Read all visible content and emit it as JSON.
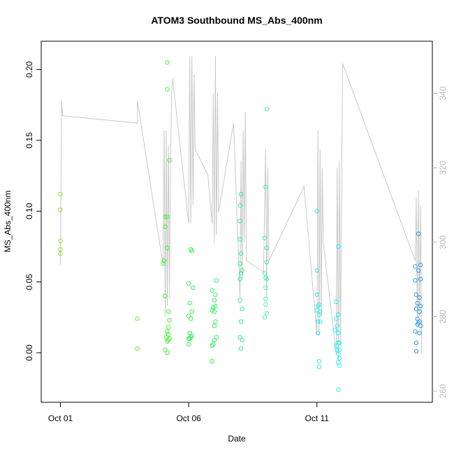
{
  "chart_data": {
    "type": "scatter",
    "title": "ATOM3 Southbound MS_Abs_400nm",
    "xlabel": "Date",
    "ylabel": "MS_Abs_400nm",
    "xlim": [
      "2016-09-30 06:00",
      "2016-10-15 12:00"
    ],
    "ylim": [
      -0.035,
      0.22
    ],
    "x_ticks": [
      {
        "date": "2016-10-01 00:00",
        "label": "Oct 01"
      },
      {
        "date": "2016-10-06 00:00",
        "label": "Oct 06"
      },
      {
        "date": "2016-10-11 00:00",
        "label": "Oct 11"
      }
    ],
    "y_ticks": [
      {
        "value": 0.0,
        "label": "0.00"
      },
      {
        "value": 0.05,
        "label": "0.05"
      },
      {
        "value": 0.1,
        "label": "0.10"
      },
      {
        "value": 0.15,
        "label": "0.15"
      },
      {
        "value": 0.2,
        "label": "0.20"
      }
    ],
    "y2lim": [
      257,
      354
    ],
    "y2_ticks": [
      {
        "value": 260,
        "label": "260"
      },
      {
        "value": 280,
        "label": "280"
      },
      {
        "value": 300,
        "label": "300"
      },
      {
        "value": 320,
        "label": "320"
      },
      {
        "value": 340,
        "label": "340"
      }
    ],
    "points": [
      {
        "x": "2016-10-01 00:00",
        "y": 0.112,
        "color": "#99e033"
      },
      {
        "x": "2016-10-01 00:00",
        "y": 0.101,
        "color": "#99e033"
      },
      {
        "x": "2016-10-01 00:00",
        "y": 0.079,
        "color": "#99e033"
      },
      {
        "x": "2016-10-01 00:00",
        "y": 0.073,
        "color": "#99e033"
      },
      {
        "x": "2016-10-01 00:00",
        "y": 0.07,
        "color": "#99e033"
      },
      {
        "x": "2016-10-04 00:00",
        "y": 0.024,
        "color": "#66ee22"
      },
      {
        "x": "2016-10-04 00:00",
        "y": 0.003,
        "color": "#66ee22"
      },
      {
        "x": "2016-10-05 04:00",
        "y": 0.205,
        "color": "#44f033"
      },
      {
        "x": "2016-10-05 04:00",
        "y": 0.186,
        "color": "#44f033"
      },
      {
        "x": "2016-10-05 06:00",
        "y": 0.136,
        "color": "#44f033"
      },
      {
        "x": "2016-10-05 02:00",
        "y": 0.096,
        "color": "#44f033"
      },
      {
        "x": "2016-10-05 04:00",
        "y": 0.096,
        "color": "#44f033"
      },
      {
        "x": "2016-10-05 02:00",
        "y": 0.089,
        "color": "#44f033"
      },
      {
        "x": "2016-10-05 04:00",
        "y": 0.074,
        "color": "#44f033"
      },
      {
        "x": "2016-10-05 01:00",
        "y": 0.065,
        "color": "#44f033"
      },
      {
        "x": "2016-10-05 00:00",
        "y": 0.063,
        "color": "#44f033"
      },
      {
        "x": "2016-10-05 02:00",
        "y": 0.04,
        "color": "#44f033"
      },
      {
        "x": "2016-10-05 05:00",
        "y": 0.029,
        "color": "#44f033"
      },
      {
        "x": "2016-10-05 06:00",
        "y": 0.023,
        "color": "#44f033"
      },
      {
        "x": "2016-10-05 05:00",
        "y": 0.018,
        "color": "#44f033"
      },
      {
        "x": "2016-10-05 04:00",
        "y": 0.015,
        "color": "#44f033"
      },
      {
        "x": "2016-10-05 05:00",
        "y": 0.013,
        "color": "#44f033"
      },
      {
        "x": "2016-10-05 03:00",
        "y": 0.011,
        "color": "#44f033"
      },
      {
        "x": "2016-10-05 06:00",
        "y": 0.01,
        "color": "#44f033"
      },
      {
        "x": "2016-10-05 05:00",
        "y": 0.009,
        "color": "#44f033"
      },
      {
        "x": "2016-10-05 04:00",
        "y": 0.008,
        "color": "#44f033"
      },
      {
        "x": "2016-10-05 02:00",
        "y": 0.002,
        "color": "#44f033"
      },
      {
        "x": "2016-10-05 04:00",
        "y": 0.0,
        "color": "#44f033"
      },
      {
        "x": "2016-10-06 02:00",
        "y": 0.073,
        "color": "#33ee55"
      },
      {
        "x": "2016-10-06 03:00",
        "y": 0.072,
        "color": "#33ee55"
      },
      {
        "x": "2016-10-06 00:00",
        "y": 0.049,
        "color": "#33ee55"
      },
      {
        "x": "2016-10-06 04:00",
        "y": 0.046,
        "color": "#33ee55"
      },
      {
        "x": "2016-10-06 01:00",
        "y": 0.035,
        "color": "#33ee55"
      },
      {
        "x": "2016-10-06 03:00",
        "y": 0.029,
        "color": "#33ee55"
      },
      {
        "x": "2016-10-06 00:00",
        "y": 0.026,
        "color": "#33ee55"
      },
      {
        "x": "2016-10-06 02:00",
        "y": 0.024,
        "color": "#33ee55"
      },
      {
        "x": "2016-10-06 01:00",
        "y": 0.014,
        "color": "#33ee55"
      },
      {
        "x": "2016-10-06 03:00",
        "y": 0.012,
        "color": "#33ee55"
      },
      {
        "x": "2016-10-06 02:00",
        "y": 0.011,
        "color": "#33ee55"
      },
      {
        "x": "2016-10-06 00:00",
        "y": 0.01,
        "color": "#33ee55"
      },
      {
        "x": "2016-10-06 01:00",
        "y": 0.01,
        "color": "#33ee55"
      },
      {
        "x": "2016-10-06 00:00",
        "y": 0.006,
        "color": "#33ee55"
      },
      {
        "x": "2016-10-06 22:00",
        "y": 0.044,
        "color": "#33ee66"
      },
      {
        "x": "2016-10-07 02:00",
        "y": 0.051,
        "color": "#33ee66"
      },
      {
        "x": "2016-10-07 01:00",
        "y": 0.041,
        "color": "#33ee66"
      },
      {
        "x": "2016-10-07 00:00",
        "y": 0.037,
        "color": "#33ee66"
      },
      {
        "x": "2016-10-07 01:00",
        "y": 0.033,
        "color": "#33ee66"
      },
      {
        "x": "2016-10-06 23:00",
        "y": 0.032,
        "color": "#33ee66"
      },
      {
        "x": "2016-10-07 00:00",
        "y": 0.029,
        "color": "#33ee66"
      },
      {
        "x": "2016-10-06 22:00",
        "y": 0.03,
        "color": "#33ee66"
      },
      {
        "x": "2016-10-07 01:00",
        "y": 0.022,
        "color": "#33ee66"
      },
      {
        "x": "2016-10-07 00:00",
        "y": 0.019,
        "color": "#33ee66"
      },
      {
        "x": "2016-10-07 02:00",
        "y": 0.011,
        "color": "#33ee66"
      },
      {
        "x": "2016-10-07 00:00",
        "y": 0.009,
        "color": "#33ee66"
      },
      {
        "x": "2016-10-06 23:00",
        "y": 0.006,
        "color": "#33ee66"
      },
      {
        "x": "2016-10-06 22:00",
        "y": 0.005,
        "color": "#33ee66"
      },
      {
        "x": "2016-10-06 22:00",
        "y": -0.006,
        "color": "#33ee66"
      },
      {
        "x": "2016-10-08 01:00",
        "y": 0.112,
        "color": "#33ee88"
      },
      {
        "x": "2016-10-08 00:00",
        "y": 0.104,
        "color": "#33ee88"
      },
      {
        "x": "2016-10-08 00:00",
        "y": 0.093,
        "color": "#33ee88"
      },
      {
        "x": "2016-10-08 00:00",
        "y": 0.08,
        "color": "#33ee88"
      },
      {
        "x": "2016-10-08 01:00",
        "y": 0.07,
        "color": "#33ee88"
      },
      {
        "x": "2016-10-08 00:00",
        "y": 0.063,
        "color": "#33ee88"
      },
      {
        "x": "2016-10-08 02:00",
        "y": 0.058,
        "color": "#33ee88"
      },
      {
        "x": "2016-10-08 01:00",
        "y": 0.056,
        "color": "#33ee88"
      },
      {
        "x": "2016-10-08 00:00",
        "y": 0.052,
        "color": "#33ee88"
      },
      {
        "x": "2016-10-08 02:00",
        "y": 0.031,
        "color": "#33ee88"
      },
      {
        "x": "2016-10-08 01:00",
        "y": 0.022,
        "color": "#33ee88"
      },
      {
        "x": "2016-10-08 00:00",
        "y": 0.011,
        "color": "#33ee88"
      },
      {
        "x": "2016-10-08 02:00",
        "y": 0.009,
        "color": "#33ee88"
      },
      {
        "x": "2016-10-08 01:00",
        "y": 0.003,
        "color": "#33ee88"
      },
      {
        "x": "2016-10-08 00:00",
        "y": 0.037,
        "color": "#33ee88"
      },
      {
        "x": "2016-10-09 01:00",
        "y": 0.172,
        "color": "#44eeaa"
      },
      {
        "x": "2016-10-09 00:00",
        "y": 0.117,
        "color": "#44eeaa"
      },
      {
        "x": "2016-10-08 23:00",
        "y": 0.081,
        "color": "#44eeaa"
      },
      {
        "x": "2016-10-09 01:00",
        "y": 0.074,
        "color": "#44eeaa"
      },
      {
        "x": "2016-10-09 01:00",
        "y": 0.064,
        "color": "#44eeaa"
      },
      {
        "x": "2016-10-08 23:00",
        "y": 0.056,
        "color": "#44eeaa"
      },
      {
        "x": "2016-10-09 00:00",
        "y": 0.053,
        "color": "#44eeaa"
      },
      {
        "x": "2016-10-09 01:00",
        "y": 0.052,
        "color": "#44eeaa"
      },
      {
        "x": "2016-10-09 00:00",
        "y": 0.046,
        "color": "#44eeaa"
      },
      {
        "x": "2016-10-09 00:00",
        "y": 0.038,
        "color": "#44eeaa"
      },
      {
        "x": "2016-10-09 00:00",
        "y": 0.034,
        "color": "#44eeaa"
      },
      {
        "x": "2016-10-09 01:00",
        "y": 0.028,
        "color": "#44eeaa"
      },
      {
        "x": "2016-10-08 23:00",
        "y": 0.025,
        "color": "#44eeaa"
      },
      {
        "x": "2016-10-11 00:00",
        "y": 0.1,
        "color": "#33eedd"
      },
      {
        "x": "2016-10-11 00:00",
        "y": 0.058,
        "color": "#33eedd"
      },
      {
        "x": "2016-10-11 00:00",
        "y": 0.041,
        "color": "#33eedd"
      },
      {
        "x": "2016-10-11 02:00",
        "y": 0.034,
        "color": "#33eedd"
      },
      {
        "x": "2016-10-11 01:00",
        "y": 0.033,
        "color": "#33eedd"
      },
      {
        "x": "2016-10-11 03:00",
        "y": 0.029,
        "color": "#33eedd"
      },
      {
        "x": "2016-10-11 00:00",
        "y": 0.03,
        "color": "#33eedd"
      },
      {
        "x": "2016-10-11 02:00",
        "y": 0.027,
        "color": "#33eedd"
      },
      {
        "x": "2016-10-11 01:00",
        "y": 0.022,
        "color": "#33eedd"
      },
      {
        "x": "2016-10-11 03:00",
        "y": 0.022,
        "color": "#33eedd"
      },
      {
        "x": "2016-10-11 01:00",
        "y": 0.014,
        "color": "#33eedd"
      },
      {
        "x": "2016-10-11 02:00",
        "y": -0.006,
        "color": "#33eedd"
      },
      {
        "x": "2016-10-11 02:00",
        "y": -0.01,
        "color": "#33eedd"
      },
      {
        "x": "2016-10-11 20:00",
        "y": 0.075,
        "color": "#33eeee"
      },
      {
        "x": "2016-10-11 18:00",
        "y": 0.036,
        "color": "#33eeee"
      },
      {
        "x": "2016-10-11 20:00",
        "y": 0.027,
        "color": "#33eeee"
      },
      {
        "x": "2016-10-11 18:00",
        "y": 0.024,
        "color": "#33eeee"
      },
      {
        "x": "2016-10-11 19:00",
        "y": 0.019,
        "color": "#33eeee"
      },
      {
        "x": "2016-10-11 17:00",
        "y": 0.016,
        "color": "#33eeee"
      },
      {
        "x": "2016-10-11 20:00",
        "y": 0.014,
        "color": "#33eeee"
      },
      {
        "x": "2016-10-11 20:00",
        "y": 0.007,
        "color": "#33eeee"
      },
      {
        "x": "2016-10-11 21:00",
        "y": 0.007,
        "color": "#33eeee"
      },
      {
        "x": "2016-10-11 18:00",
        "y": 0.005,
        "color": "#33eeee"
      },
      {
        "x": "2016-10-11 19:00",
        "y": 0.002,
        "color": "#33eeee"
      },
      {
        "x": "2016-10-11 21:00",
        "y": 0.002,
        "color": "#33eeee"
      },
      {
        "x": "2016-10-11 20:00",
        "y": -0.001,
        "color": "#33eeee"
      },
      {
        "x": "2016-10-11 21:00",
        "y": -0.004,
        "color": "#33eeee"
      },
      {
        "x": "2016-10-11 20:00",
        "y": -0.007,
        "color": "#33eeee"
      },
      {
        "x": "2016-10-11 21:00",
        "y": -0.009,
        "color": "#33eeee"
      },
      {
        "x": "2016-10-11 20:00",
        "y": -0.026,
        "color": "#33eeee"
      },
      {
        "x": "2016-10-14 23:00",
        "y": 0.084,
        "color": "#3399dd"
      },
      {
        "x": "2016-10-14 20:00",
        "y": 0.061,
        "color": "#3399dd"
      },
      {
        "x": "2016-10-15 01:00",
        "y": 0.062,
        "color": "#3399dd"
      },
      {
        "x": "2016-10-14 23:00",
        "y": 0.058,
        "color": "#3399dd"
      },
      {
        "x": "2016-10-14 20:00",
        "y": 0.051,
        "color": "#3399dd"
      },
      {
        "x": "2016-10-15 01:00",
        "y": 0.052,
        "color": "#3399dd"
      },
      {
        "x": "2016-10-14 21:00",
        "y": 0.041,
        "color": "#3399dd"
      },
      {
        "x": "2016-10-15 00:00",
        "y": 0.039,
        "color": "#3399dd"
      },
      {
        "x": "2016-10-14 22:00",
        "y": 0.035,
        "color": "#3399dd"
      },
      {
        "x": "2016-10-15 01:00",
        "y": 0.033,
        "color": "#3399dd"
      },
      {
        "x": "2016-10-14 21:00",
        "y": 0.031,
        "color": "#3399dd"
      },
      {
        "x": "2016-10-15 00:00",
        "y": 0.029,
        "color": "#3399dd"
      },
      {
        "x": "2016-10-14 22:00",
        "y": 0.024,
        "color": "#3399dd"
      },
      {
        "x": "2016-10-15 00:00",
        "y": 0.022,
        "color": "#3399dd"
      },
      {
        "x": "2016-10-14 23:00",
        "y": 0.021,
        "color": "#3399dd"
      },
      {
        "x": "2016-10-14 22:00",
        "y": 0.02,
        "color": "#3399dd"
      },
      {
        "x": "2016-10-15 01:00",
        "y": 0.019,
        "color": "#3399dd"
      },
      {
        "x": "2016-10-14 20:00",
        "y": 0.015,
        "color": "#3399dd"
      },
      {
        "x": "2016-10-15 00:00",
        "y": 0.014,
        "color": "#3399dd"
      },
      {
        "x": "2016-10-14 21:00",
        "y": 0.007,
        "color": "#3399dd"
      },
      {
        "x": "2016-10-14 21:00",
        "y": 0.001,
        "color": "#3399dd"
      }
    ],
    "secondary_line": {
      "color": "#c8c8c8",
      "points": [
        [
          "2016-10-01 00:00",
          294
        ],
        [
          "2016-10-01 01:00",
          338
        ],
        [
          "2016-10-01 02:00",
          334
        ],
        [
          "2016-10-04 00:00",
          332
        ],
        [
          "2016-10-04 00:00",
          337
        ],
        [
          "2016-10-04 00:00",
          332
        ],
        [
          "2016-10-04 00:00",
          338
        ],
        [
          "2016-10-05 00:00",
          294
        ],
        [
          "2016-10-05 01:00",
          330
        ],
        [
          "2016-10-05 02:00",
          280
        ],
        [
          "2016-10-05 03:00",
          330
        ],
        [
          "2016-10-05 04:00",
          283
        ],
        [
          "2016-10-05 05:00",
          326
        ],
        [
          "2016-10-05 06:00",
          285
        ],
        [
          "2016-10-05 07:00",
          320
        ],
        [
          "2016-10-05 08:00",
          340
        ],
        [
          "2016-10-05 09:00",
          344
        ],
        [
          "2016-10-06 00:00",
          305
        ],
        [
          "2016-10-06 01:00",
          350
        ],
        [
          "2016-10-06 02:00",
          305
        ],
        [
          "2016-10-06 03:00",
          350
        ],
        [
          "2016-10-06 04:00",
          310
        ],
        [
          "2016-10-06 05:00",
          345
        ],
        [
          "2016-10-06 06:00",
          325
        ],
        [
          "2016-10-06 18:00",
          318
        ],
        [
          "2016-10-06 22:00",
          305
        ],
        [
          "2016-10-06 23:00",
          340
        ],
        [
          "2016-10-07 00:00",
          300
        ],
        [
          "2016-10-07 01:00",
          350
        ],
        [
          "2016-10-07 02:00",
          302
        ],
        [
          "2016-10-07 03:00",
          340
        ],
        [
          "2016-10-07 04:00",
          308
        ],
        [
          "2016-10-07 18:00",
          332
        ],
        [
          "2016-10-08 00:00",
          285
        ],
        [
          "2016-10-08 01:00",
          322
        ],
        [
          "2016-10-08 02:00",
          290
        ],
        [
          "2016-10-08 03:00",
          330
        ],
        [
          "2016-10-08 04:00",
          300
        ],
        [
          "2016-10-08 05:00",
          335
        ],
        [
          "2016-10-08 06:00",
          295
        ],
        [
          "2016-10-08 22:00",
          292
        ],
        [
          "2016-10-09 00:00",
          325
        ],
        [
          "2016-10-09 01:00",
          285
        ],
        [
          "2016-10-09 02:00",
          320
        ],
        [
          "2016-10-09 03:00",
          295
        ],
        [
          "2016-10-10 12:00",
          315
        ],
        [
          "2016-10-11 00:00",
          275
        ],
        [
          "2016-10-11 01:00",
          330
        ],
        [
          "2016-10-11 02:00",
          275
        ],
        [
          "2016-10-11 03:00",
          325
        ],
        [
          "2016-10-11 04:00",
          280
        ],
        [
          "2016-10-11 05:00",
          320
        ],
        [
          "2016-10-11 06:00",
          300
        ],
        [
          "2016-10-11 18:00",
          270
        ],
        [
          "2016-10-11 19:00",
          320
        ],
        [
          "2016-10-11 20:00",
          268
        ],
        [
          "2016-10-11 21:00",
          322
        ],
        [
          "2016-10-11 22:00",
          272
        ],
        [
          "2016-10-12 00:00",
          348
        ],
        [
          "2016-10-14 20:00",
          295
        ],
        [
          "2016-10-14 21:00",
          312
        ],
        [
          "2016-10-14 22:00",
          278
        ],
        [
          "2016-10-14 23:00",
          314
        ],
        [
          "2016-10-15 00:00",
          280
        ],
        [
          "2016-10-15 01:00",
          310
        ],
        [
          "2016-10-15 02:00",
          270
        ]
      ]
    }
  }
}
